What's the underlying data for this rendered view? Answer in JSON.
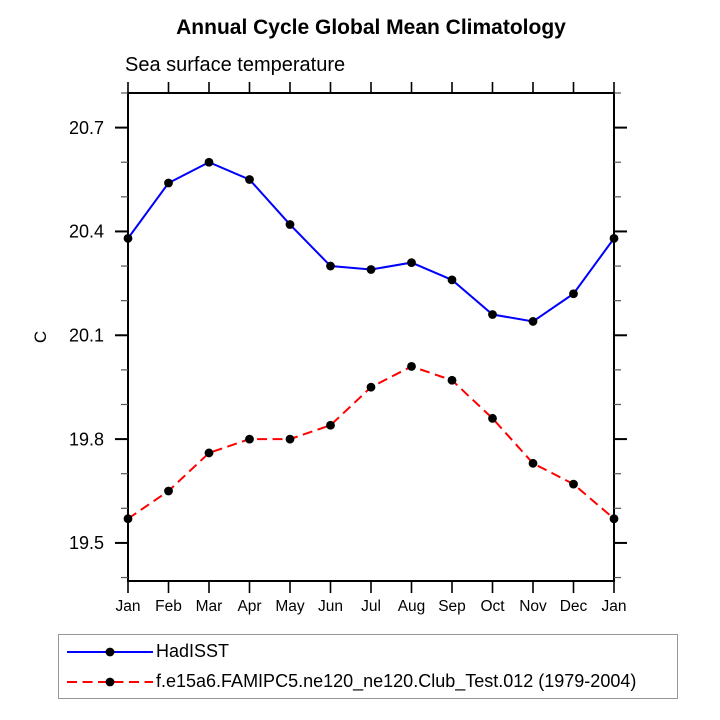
{
  "title": "Annual Cycle Global Mean Climatology",
  "subtitle": "Sea surface temperature",
  "ylabel": "C",
  "legend": {
    "items": [
      {
        "label": "HadISST",
        "color": "#0000ff",
        "line_style": "solid"
      },
      {
        "label": "f.e15a6.FAMIPC5.ne120_ne120.Club_Test.012 (1979-2004)",
        "color": "#ff0000",
        "line_style": "dashed"
      }
    ]
  },
  "colors": {
    "axis": "#000000",
    "minor_tick": "#555555",
    "marker": "#000000",
    "series_blue": "#0000ff",
    "series_red": "#ff0000",
    "legend_border": "#979797"
  },
  "chart_data": {
    "type": "line",
    "title": "Annual Cycle Global Mean Climatology",
    "subtitle": "Sea surface temperature",
    "xlabel": "",
    "ylabel": "C",
    "categories": [
      "Jan",
      "Feb",
      "Mar",
      "Apr",
      "May",
      "Jun",
      "Jul",
      "Aug",
      "Sep",
      "Oct",
      "Nov",
      "Dec",
      "Jan"
    ],
    "ylim": [
      19.39,
      20.8
    ],
    "yticks_major": [
      19.5,
      19.8,
      20.1,
      20.4,
      20.7
    ],
    "ytick_minor_step": 0.1,
    "grid": false,
    "legend_position": "bottom-left-box",
    "series": [
      {
        "name": "HadISST",
        "color": "#0000ff",
        "line_style": "solid",
        "marker": "filled-circle",
        "marker_color": "#000000",
        "values": [
          20.38,
          20.54,
          20.6,
          20.55,
          20.42,
          20.3,
          20.29,
          20.31,
          20.26,
          20.16,
          20.14,
          20.22,
          20.38
        ]
      },
      {
        "name": "f.e15a6.FAMIPC5.ne120_ne120.Club_Test.012 (1979-2004)",
        "color": "#ff0000",
        "line_style": "dashed",
        "marker": "filled-circle",
        "marker_color": "#000000",
        "values": [
          19.57,
          19.65,
          19.76,
          19.8,
          19.8,
          19.84,
          19.95,
          20.01,
          19.97,
          19.86,
          19.73,
          19.67,
          19.57
        ]
      }
    ]
  }
}
